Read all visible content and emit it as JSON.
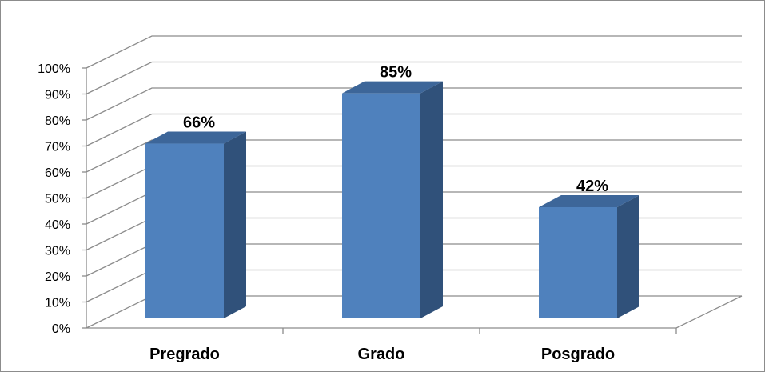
{
  "chart_data": {
    "type": "bar",
    "categories": [
      "Pregrado",
      "Grado",
      "Posgrado"
    ],
    "values": [
      66,
      85,
      42
    ],
    "data_labels": [
      "66%",
      "85%",
      "42%"
    ],
    "y_ticks": [
      "0%",
      "10%",
      "20%",
      "30%",
      "40%",
      "50%",
      "60%",
      "70%",
      "80%",
      "90%",
      "100%"
    ],
    "ylim": [
      0,
      100
    ],
    "grid": true,
    "style": "3d-column",
    "colors": {
      "front": "#4f81bd",
      "side": "#30517a",
      "top": "#3d6699",
      "grid": "#8c8c8c"
    }
  }
}
